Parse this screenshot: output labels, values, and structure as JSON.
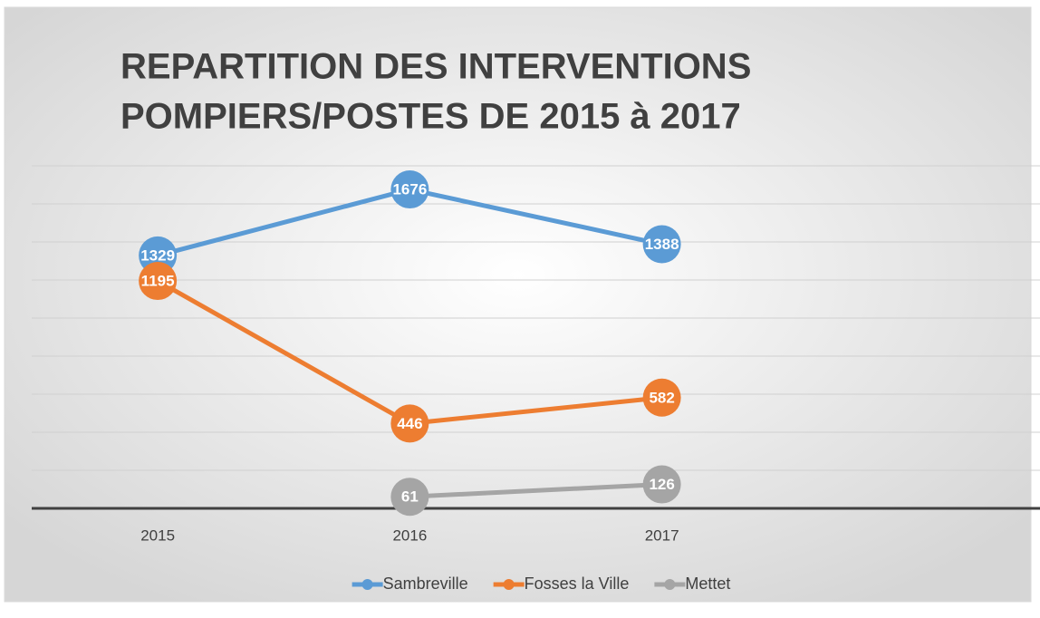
{
  "chart_data": {
    "type": "line",
    "title": [
      "REPARTITION DES INTERVENTIONS",
      "POMPIERS/POSTES DE 2015 à 2017"
    ],
    "categories": [
      "2015",
      "2016",
      "2017",
      null
    ],
    "series": [
      {
        "name": "Sambreville",
        "color": "#5b9bd5",
        "values": [
          1329,
          1676,
          1388,
          null
        ]
      },
      {
        "name": "Fosses la Ville",
        "color": "#ed7d31",
        "values": [
          1195,
          446,
          582,
          null
        ]
      },
      {
        "name": "Mettet",
        "color": "#a5a5a5",
        "values": [
          null,
          61,
          126,
          null
        ]
      }
    ],
    "ylim": [
      0,
      1800
    ],
    "yticks": [
      0,
      200,
      400,
      600,
      800,
      1000,
      1200,
      1400,
      1600,
      1800
    ],
    "grid": true,
    "legend": "bottom",
    "data_labels": true
  }
}
